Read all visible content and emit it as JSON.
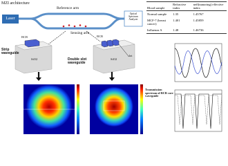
{
  "header": {
    "title": "MZI architecture"
  },
  "diagram": {
    "laser": "Laser",
    "reference_arm": "Reference arm",
    "sensing_arm": "Sensing arm",
    "analyzer": "Optical Spectrum Analyzer",
    "strip": {
      "title": "Strip waveguide",
      "core": "BCB",
      "substrate": "SiO2"
    },
    "double_slot": {
      "title": "Double slot waveguide",
      "core": "BCB",
      "substrate": "SiO2",
      "slot": "slot"
    },
    "spectrum_caption": "Transmission spectrum of BCB core waveguide"
  },
  "table": {
    "columns": [
      "Blood sample",
      "Refractive index",
      "neff(nanoring) effective index"
    ],
    "rows": [
      [
        "Normal sample",
        "1.35",
        "1.45767"
      ],
      [
        "MCF-7 (breast cancer)",
        "1.401",
        "1.45859"
      ],
      [
        "Influenza A",
        "1.48",
        "1.46736"
      ]
    ]
  }
}
